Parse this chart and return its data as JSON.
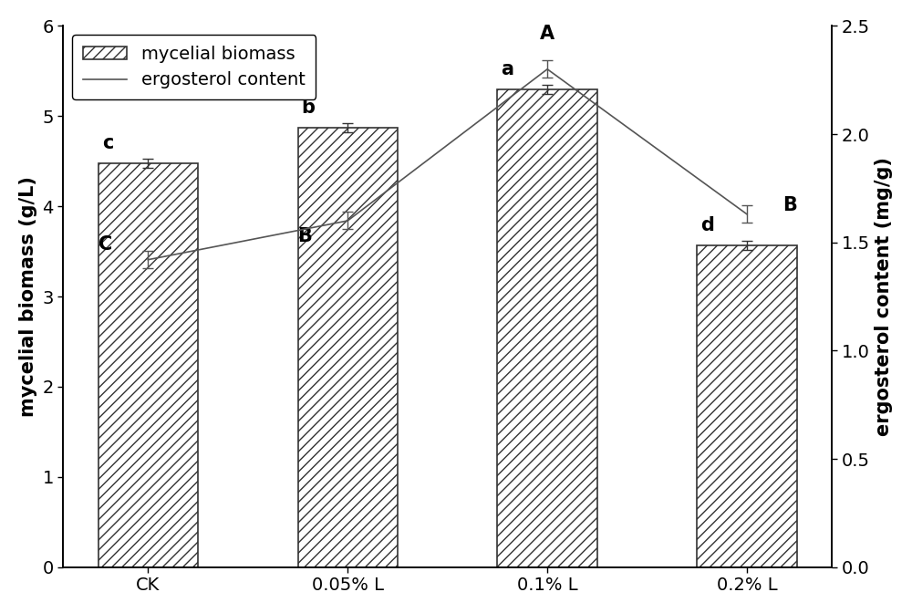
{
  "categories": [
    "CK",
    "0.05% L",
    "0.1% L",
    "0.2% L"
  ],
  "bar_values": [
    4.48,
    4.87,
    5.3,
    3.57
  ],
  "bar_errors": [
    0.05,
    0.05,
    0.05,
    0.05
  ],
  "line_values": [
    1.42,
    1.6,
    2.3,
    1.63
  ],
  "line_errors": [
    0.04,
    0.04,
    0.04,
    0.04
  ],
  "bar_labels": [
    "c",
    "b",
    "a",
    "d"
  ],
  "line_labels": [
    "C",
    "B",
    "A",
    "B"
  ],
  "ylabel_left": "mycelial biomass (g/L)",
  "ylabel_right": "ergosterol content (mg/g)",
  "ylim_left": [
    0,
    6
  ],
  "ylim_right": [
    0.0,
    2.5
  ],
  "legend_bar": "mycelial biomass",
  "legend_line": "ergosterol content",
  "bar_facecolor": "#ffffff",
  "bar_edge_color": "#333333",
  "line_color": "#555555",
  "hatch": "///",
  "label_fontsize": 15,
  "tick_fontsize": 14,
  "annotation_fontsize": 15,
  "legend_fontsize": 14,
  "background_color": "#ffffff"
}
